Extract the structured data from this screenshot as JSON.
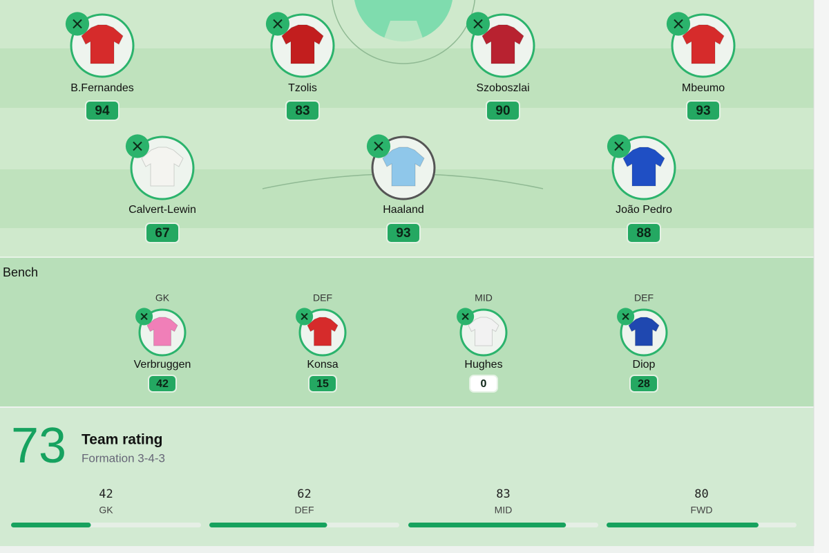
{
  "pitch": {
    "rows": [
      {
        "players": [
          {
            "name": "B.Fernandes",
            "rating": 94
          },
          {
            "name": "Tzolis",
            "rating": 83
          },
          {
            "name": "Szoboszlai",
            "rating": 90
          },
          {
            "name": "Mbeumo",
            "rating": 93
          }
        ]
      },
      {
        "players": [
          {
            "name": "Calvert-Lewin",
            "rating": 67
          },
          {
            "name": "Haaland",
            "rating": 93
          },
          {
            "name": "João Pedro",
            "rating": 88
          }
        ]
      }
    ]
  },
  "bench": {
    "title": "Bench",
    "players": [
      {
        "position": "GK",
        "name": "Verbruggen",
        "rating": 42
      },
      {
        "position": "DEF",
        "name": "Konsa",
        "rating": 15
      },
      {
        "position": "MID",
        "name": "Hughes",
        "rating": 0
      },
      {
        "position": "DEF",
        "name": "Diop",
        "rating": 28
      }
    ]
  },
  "summary": {
    "rating": 73,
    "title": "Team rating",
    "formation": "Formation 3-4-3",
    "lines": [
      {
        "value": 42,
        "label": "GK"
      },
      {
        "value": 62,
        "label": "DEF"
      },
      {
        "value": 83,
        "label": "MID"
      },
      {
        "value": 80,
        "label": "FWD"
      }
    ]
  }
}
